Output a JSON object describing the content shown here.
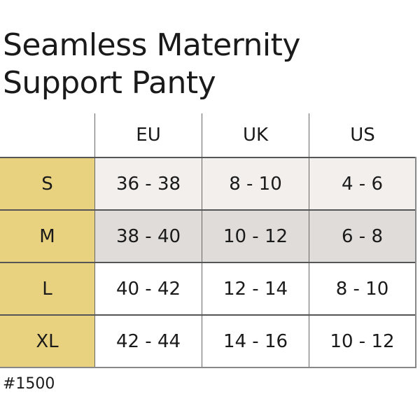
{
  "title_lines": [
    "Seamless Maternity",
    "Support Panty"
  ],
  "table": {
    "headers": [
      "",
      "EU",
      "UK",
      "US"
    ],
    "rows": [
      {
        "size": "S",
        "EU": "36 - 38",
        "UK": "8 - 10",
        "US": "4 - 6"
      },
      {
        "size": "M",
        "EU": "38 - 40",
        "UK": "10 - 12",
        "US": "6 - 8"
      },
      {
        "size": "L",
        "EU": "40 - 42",
        "UK": "12 - 14",
        "US": "8 - 10"
      },
      {
        "size": "XL",
        "EU": "42 - 44",
        "UK": "14 - 16",
        "US": "10 - 12"
      }
    ]
  },
  "product_code": "#1500",
  "colors": {
    "size_column": "#e8d27f",
    "row_s": "#f2efed",
    "row_m": "#e0dcd9"
  }
}
